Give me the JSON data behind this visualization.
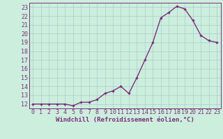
{
  "x": [
    0,
    1,
    2,
    3,
    4,
    5,
    6,
    7,
    8,
    9,
    10,
    11,
    12,
    13,
    14,
    15,
    16,
    17,
    18,
    19,
    20,
    21,
    22,
    23
  ],
  "y": [
    12.0,
    12.0,
    12.0,
    12.0,
    12.0,
    11.8,
    12.2,
    12.2,
    12.5,
    13.2,
    13.5,
    14.0,
    13.2,
    15.0,
    17.0,
    19.0,
    21.8,
    22.4,
    23.1,
    22.8,
    21.5,
    19.8,
    19.2,
    19.0
  ],
  "line_color": "#7b2f7b",
  "marker": "D",
  "marker_size": 2.2,
  "linewidth": 1.0,
  "xlabel": "Windchill (Refroidissement éolien,°C)",
  "xlabel_fontsize": 6.5,
  "background_color": "#cceedd",
  "grid_color": "#aacccc",
  "ylim": [
    11.5,
    23.5
  ],
  "xlim": [
    -0.5,
    23.5
  ],
  "yticks": [
    12,
    13,
    14,
    15,
    16,
    17,
    18,
    19,
    20,
    21,
    22,
    23
  ],
  "xticks": [
    0,
    1,
    2,
    3,
    4,
    5,
    6,
    7,
    8,
    9,
    10,
    11,
    12,
    13,
    14,
    15,
    16,
    17,
    18,
    19,
    20,
    21,
    22,
    23
  ],
  "tick_fontsize": 6.0,
  "tick_color": "#7b2f7b",
  "spine_color": "#7b2f7b"
}
